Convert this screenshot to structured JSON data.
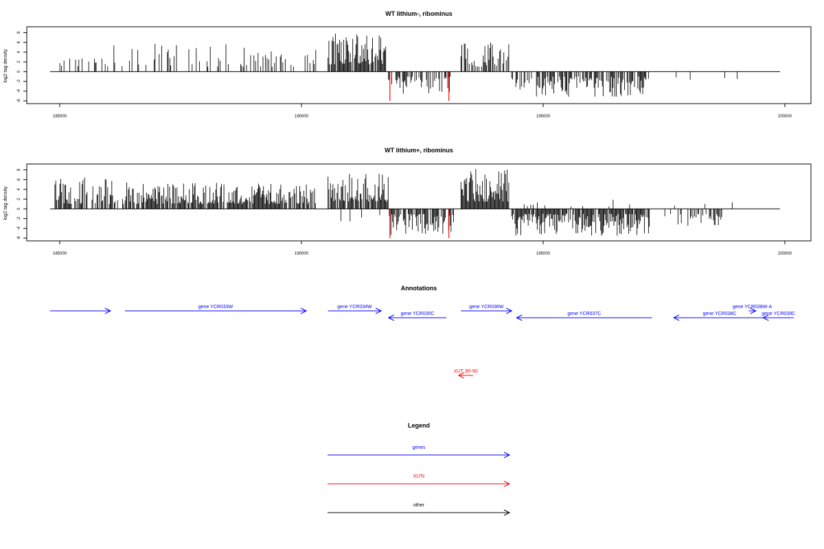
{
  "chart_data": [
    {
      "type": "bar",
      "title": "WT lithium-, ribominus",
      "ylabel": "log2 tag density",
      "xlim": [
        184800,
        199900
      ],
      "ylim": [
        -6,
        8.5
      ],
      "x_ticks": [
        "185000",
        "190000",
        "195000",
        "200000"
      ],
      "y_ticks": [
        "8",
        "6",
        "4",
        "2",
        "0",
        "-2",
        "-4",
        "-6"
      ],
      "grid": false,
      "segments": [
        {
          "strand": "+",
          "start": 184900,
          "end": 186000,
          "density": 0.25,
          "min": 1,
          "max": 4.8
        },
        {
          "strand": "+",
          "start": 186000,
          "end": 189000,
          "density": 0.2,
          "min": 1,
          "max": 5.8
        },
        {
          "strand": "+",
          "start": 189000,
          "end": 190300,
          "density": 0.28,
          "min": 1,
          "max": 4.5
        },
        {
          "strand": "+",
          "start": 190550,
          "end": 191750,
          "density": 0.9,
          "min": 1.5,
          "max": 7.8
        },
        {
          "strand": "+",
          "start": 193300,
          "end": 194300,
          "density": 0.55,
          "min": 1,
          "max": 6
        },
        {
          "strand": "-",
          "start": 191800,
          "end": 193100,
          "density": 0.55,
          "min": 1,
          "max": 4.6
        },
        {
          "strand": "-",
          "start": 194350,
          "end": 197200,
          "density": 0.65,
          "min": 1,
          "max": 5.2
        },
        {
          "strand": "-",
          "start": 197700,
          "end": 199300,
          "density": 0.06,
          "min": 1,
          "max": 2.2
        }
      ],
      "highlight_bars": [
        {
          "x": 191830,
          "y": -6,
          "color": "#ff0000"
        },
        {
          "x": 193050,
          "y": -6,
          "color": "#ff0000"
        }
      ]
    },
    {
      "type": "bar",
      "title": "WT lithium+, ribominus",
      "ylabel": "log2 tag density",
      "xlim": [
        184800,
        199900
      ],
      "ylim": [
        -6,
        8.5
      ],
      "x_ticks": [
        "185000",
        "190000",
        "195000",
        "200000"
      ],
      "y_ticks": [
        "8",
        "6",
        "4",
        "2",
        "0",
        "-2",
        "-4",
        "-6"
      ],
      "grid": false,
      "segments": [
        {
          "strand": "+",
          "start": 184900,
          "end": 186200,
          "density": 0.7,
          "min": 1,
          "max": 6.5
        },
        {
          "strand": "+",
          "start": 186300,
          "end": 190300,
          "density": 0.85,
          "min": 1,
          "max": 5.5
        },
        {
          "strand": "+",
          "start": 190550,
          "end": 191800,
          "density": 0.9,
          "min": 1.5,
          "max": 7.2
        },
        {
          "strand": "+",
          "start": 193300,
          "end": 194300,
          "density": 1.0,
          "min": 1.5,
          "max": 8.2
        },
        {
          "strand": "+",
          "start": 194300,
          "end": 197000,
          "density": 0.05,
          "min": 0.5,
          "max": 2
        },
        {
          "strand": "+",
          "start": 197700,
          "end": 199100,
          "density": 0.05,
          "min": 0.5,
          "max": 2
        },
        {
          "strand": "-",
          "start": 190000,
          "end": 191700,
          "density": 0.12,
          "min": 1,
          "max": 3.2
        },
        {
          "strand": "-",
          "start": 191800,
          "end": 193150,
          "density": 0.7,
          "min": 1,
          "max": 5.5
        },
        {
          "strand": "-",
          "start": 194350,
          "end": 197200,
          "density": 0.9,
          "min": 1,
          "max": 5.8
        },
        {
          "strand": "-",
          "start": 197500,
          "end": 198700,
          "density": 0.35,
          "min": 1,
          "max": 3.5
        }
      ],
      "highlight_bars": [
        {
          "x": 191830,
          "y": -6,
          "color": "#ff0000"
        },
        {
          "x": 193050,
          "y": -6,
          "color": "#ff0000"
        }
      ]
    }
  ],
  "annotations": {
    "title": "Annotations",
    "genes_color": "#0000ff",
    "xut_color": "#ff0000",
    "items": [
      {
        "label": "",
        "x1": 184800,
        "x2": 186050,
        "row": 0,
        "dir": "right",
        "kind": "gene"
      },
      {
        "label": "gene YCR033W",
        "x1": 186350,
        "x2": 190100,
        "row": 0,
        "dir": "right",
        "kind": "gene"
      },
      {
        "label": "gene YCR034W",
        "x1": 190550,
        "x2": 191650,
        "row": 0,
        "dir": "right",
        "kind": "gene"
      },
      {
        "label": "gene YCR035C",
        "x1": 191800,
        "x2": 193000,
        "row": 1,
        "dir": "left",
        "kind": "gene"
      },
      {
        "label": "gene YCR036W",
        "x1": 193300,
        "x2": 194350,
        "row": 0,
        "dir": "right",
        "kind": "gene"
      },
      {
        "label": "gene YCR037C",
        "x1": 194450,
        "x2": 197250,
        "row": 1,
        "dir": "left",
        "kind": "gene"
      },
      {
        "label": "gene YCR038C",
        "x1": 197700,
        "x2": 199600,
        "row": 1,
        "dir": "left",
        "kind": "gene"
      },
      {
        "label": "gene YCR038W-A",
        "x1": 199250,
        "x2": 199400,
        "row": 0,
        "dir": "right",
        "kind": "gene"
      },
      {
        "label": "gene YCR039C",
        "x1": 199550,
        "x2": 200250,
        "row": 1,
        "dir": "left",
        "kind": "gene"
      },
      {
        "label": "XUT 3R-90",
        "x1": 193250,
        "x2": 193550,
        "row": 2,
        "dir": "left",
        "kind": "xut"
      }
    ]
  },
  "legend": {
    "title": "Legend",
    "items": [
      {
        "label": "genes",
        "color": "#0000ff"
      },
      {
        "label": "XUTs",
        "color": "#ff0000"
      },
      {
        "label": "other",
        "color": "#000000"
      }
    ]
  }
}
